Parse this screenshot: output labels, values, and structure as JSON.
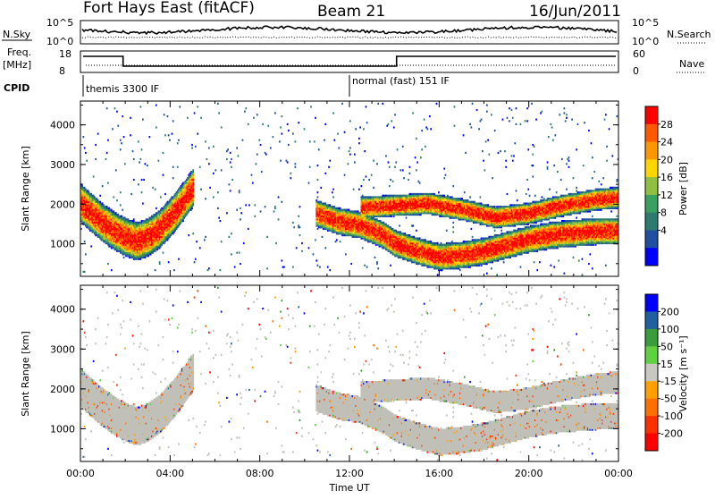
{
  "header": {
    "station": "Fort Hays East (fitACF)",
    "beam": "Beam 21",
    "date": "16/Jun/2011"
  },
  "noise_panel": {
    "left_label": "N.Sky",
    "right_label": "N.Search",
    "ticks_left": [
      "10^5",
      "10^0"
    ],
    "ticks_right": [
      "10^5",
      "10^0"
    ]
  },
  "freq_panel": {
    "left_label_1": "Freq.",
    "left_label_2": "[MHz]",
    "right_label": "Nave",
    "ticks_left": [
      "18",
      "8"
    ],
    "ticks_right": [
      "60",
      "0"
    ],
    "freq_steps": [
      {
        "start_hour": 0,
        "end_hour": 1.9,
        "level": "high"
      },
      {
        "start_hour": 1.9,
        "end_hour": 14.1,
        "level": "low"
      },
      {
        "start_hour": 14.1,
        "end_hour": 24,
        "level": "high"
      }
    ]
  },
  "cpid_panel": {
    "label": "CPID",
    "segments": [
      {
        "start_hour": 0,
        "text": "themis 3300 IF"
      },
      {
        "start_hour": 12,
        "text": "normal (fast) 151 IF"
      }
    ]
  },
  "chart_data": [
    {
      "type": "heatmap",
      "parameter": "power",
      "xlabel": "",
      "ylabel": "Slant Range [km]",
      "xlim": [
        0,
        24
      ],
      "ylim": [
        180,
        4600
      ],
      "yticks": [
        "4000",
        "3000",
        "2000",
        "1000"
      ],
      "colorbar": {
        "label": "Power [dB]",
        "ticks": [
          "28",
          "24",
          "20",
          "16",
          "12",
          "8",
          "4"
        ],
        "colors": [
          "#ff0000",
          "#ff5a00",
          "#ff9800",
          "#ffd500",
          "#8fc040",
          "#3aa060",
          "#2e7a6e",
          "#1f4fa0",
          "#0000ff"
        ]
      },
      "echo_bands": [
        {
          "hours": [
            0,
            0.5,
            1.0,
            1.5,
            2.0,
            2.5,
            3.0,
            3.5,
            4.0,
            4.5,
            5.0
          ],
          "center_km": [
            2000,
            1750,
            1500,
            1300,
            1150,
            1050,
            1150,
            1350,
            1650,
            2000,
            2400
          ],
          "width_km": 500
        },
        {
          "hours": [
            10.5,
            11.5,
            12.5,
            13.5,
            14.0,
            15.0,
            16.0,
            17.0,
            18.0,
            19.0,
            20.0,
            21.0,
            22.0,
            23.0,
            24.0
          ],
          "center_km": [
            1750,
            1550,
            1450,
            1200,
            1000,
            800,
            650,
            700,
            800,
            950,
            1100,
            1200,
            1250,
            1300,
            1300
          ],
          "width_km": 350
        },
        {
          "hours": [
            12.5,
            14.0,
            15.5,
            17.0,
            18.5,
            20.0,
            21.5,
            23.0,
            24.0
          ],
          "center_km": [
            1900,
            1950,
            2000,
            1850,
            1650,
            1750,
            1950,
            2100,
            2150
          ],
          "width_km": 280
        }
      ]
    },
    {
      "type": "heatmap",
      "parameter": "velocity",
      "xlabel": "Time UT",
      "ylabel": "Slant Range [km]",
      "xlim": [
        0,
        24
      ],
      "ylim": [
        180,
        4600
      ],
      "xticks": [
        "00:00",
        "04:00",
        "08:00",
        "12:00",
        "16:00",
        "20:00",
        "00:00"
      ],
      "yticks": [
        "4000",
        "3000",
        "2000",
        "1000"
      ],
      "colorbar": {
        "label": "Velocity [m s⁻¹]",
        "ticks": [
          "200",
          "100",
          "50",
          "15",
          "-15",
          "-50",
          "-100",
          "-200"
        ],
        "colors": [
          "#0000ff",
          "#2060a0",
          "#3a9c3a",
          "#60d040",
          "#c8c8c0",
          "#ffa000",
          "#ff7000",
          "#ff3000",
          "#ff0000"
        ]
      },
      "ground_scatter_color": "#c0c0b8"
    }
  ]
}
